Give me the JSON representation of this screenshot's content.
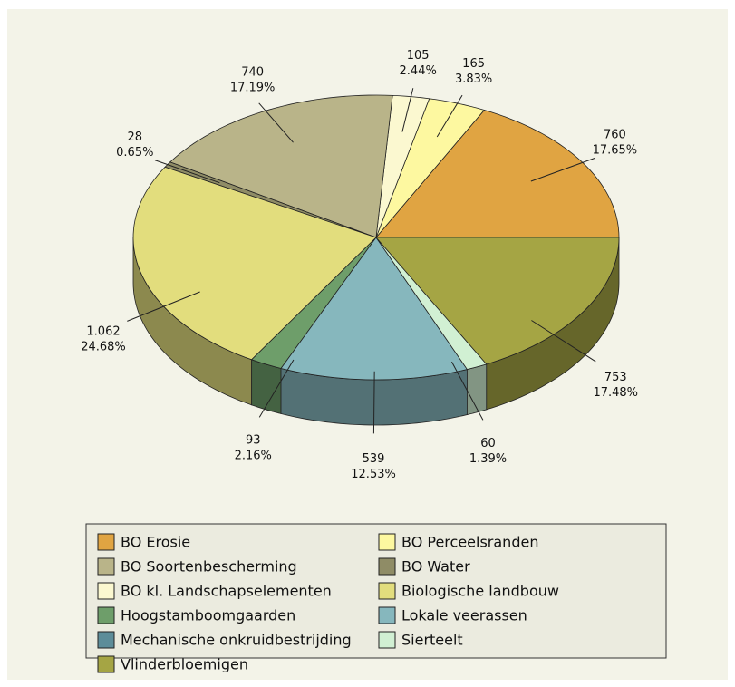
{
  "chart_data": {
    "type": "pie3d",
    "categories": [
      "BO Erosie",
      "BO Perceelsranden",
      "BO Soortenbescherming",
      "BO Water",
      "BO kl. Landschapselementen",
      "Biologische landbouw",
      "Hoogstamboomgaarden",
      "Lokale veerassen",
      "Mechanische onkruidbestrijding",
      "Sierteelt",
      "Vlinderbloemigen"
    ],
    "colors": [
      "#e0a442",
      "#fdf8a0",
      "#b9b489",
      "#8f8c66",
      "#fbf8d0",
      "#e2dd7d",
      "#6e9e6a",
      "#86b7bd",
      "#5d8d99",
      "#d1f0d3",
      "#a5a544"
    ],
    "values": [
      760,
      165,
      740,
      28,
      105,
      1062,
      93,
      539,
      null,
      60,
      753
    ],
    "value_labels": [
      "760",
      "165",
      "740",
      "28",
      "105",
      "1.062",
      "93",
      "539",
      null,
      "60",
      "753"
    ],
    "percents": [
      17.65,
      3.83,
      17.19,
      0.65,
      2.44,
      24.68,
      2.16,
      12.53,
      null,
      1.39,
      17.48
    ],
    "percent_labels": [
      "17.65%",
      "3.83%",
      "17.19%",
      "0.65%",
      "2.44%",
      "24.68%",
      "2.16%",
      "12.53%",
      null,
      "1.39%",
      "17.48%"
    ],
    "legend": "bottom"
  }
}
